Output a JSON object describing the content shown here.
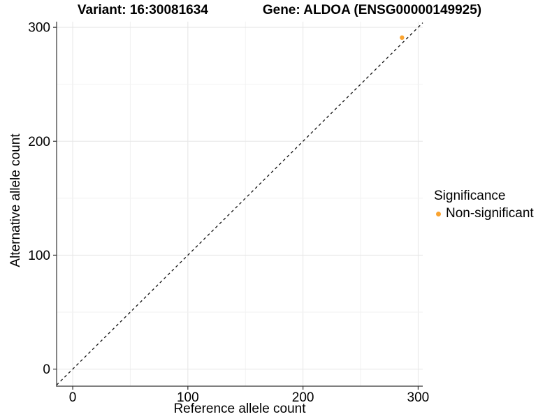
{
  "chart_data": {
    "type": "scatter",
    "title_variant": "Variant: 16:30081634",
    "title_gene": "Gene: ALDOA (ENSG00000149925)",
    "xlabel": "Reference allele count",
    "ylabel": "Alternative allele count",
    "x_ticks": [
      0,
      100,
      200,
      300
    ],
    "y_ticks": [
      0,
      100,
      200,
      300
    ],
    "xlim": [
      -14,
      304
    ],
    "ylim": [
      -15,
      305
    ],
    "grid": true,
    "grid_step": 50,
    "reference_line": {
      "type": "identity",
      "slope": 1,
      "intercept": 0,
      "style": "dashed",
      "color": "#111111"
    },
    "series": [
      {
        "name": "Non-significant",
        "color": "#FAA32F",
        "points": [
          {
            "x": 286,
            "y": 291
          }
        ]
      }
    ],
    "legend": {
      "title": "Significance",
      "position": "right",
      "items": [
        {
          "label": "Non-significant",
          "color": "#FAA32F"
        }
      ]
    },
    "colors": {
      "axis": "#333333",
      "grid_major": "#E6E6E6",
      "grid_minor": "#F2F2F2",
      "background": "#FFFFFF",
      "text": "#000000"
    }
  }
}
